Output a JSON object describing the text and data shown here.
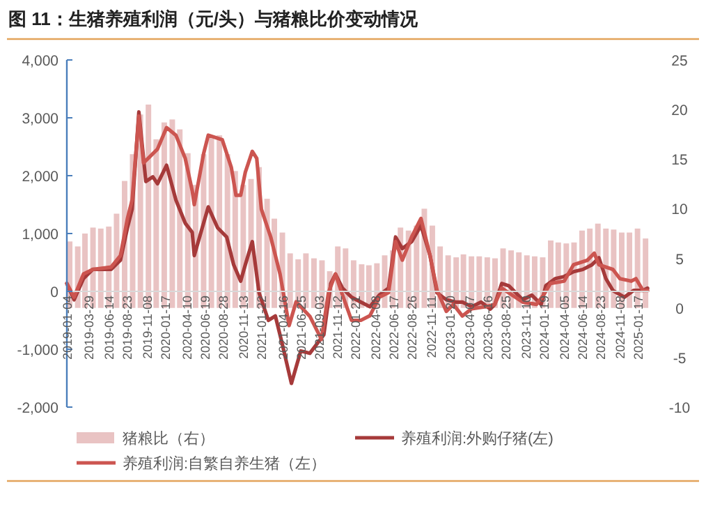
{
  "chart_data": {
    "type": "bar",
    "title": "图 11：生猪养殖利润（元/头）与猪粮比价变动情况",
    "legend": "bottom",
    "grid": false,
    "xlim": [
      "2019-01-04",
      "2025-02-28"
    ],
    "xticks": [
      "2019-01-04",
      "2019-03-29",
      "2019-06-14",
      "2019-08-23",
      "2019-11-08",
      "2020-01-17",
      "2020-04-10",
      "2020-06-19",
      "2020-08-28",
      "2020-11-13",
      "2021-01-22",
      "2021-04-16",
      "2021-06-25",
      "2021-09-03",
      "2021-11-12",
      "2022-01-21",
      "2022-04-08",
      "2022-06-17",
      "2022-08-26",
      "2022-11-11",
      "2023-01-20",
      "2023-04-07",
      "2023-06-16",
      "2023-08-25",
      "2023-11-10",
      "2024-01-19",
      "2024-04-05",
      "2024-06-14",
      "2024-08-23",
      "2024-11-08",
      "2025-01-17"
    ],
    "ylim": [
      -2000,
      4000
    ],
    "yticks": [
      {
        "value": -2000,
        "label": "-2,000"
      },
      {
        "value": -1000,
        "label": "-1,000"
      },
      0,
      {
        "value": 1000,
        "label": "1,000"
      },
      {
        "value": 2000,
        "label": "2,000"
      },
      {
        "value": 3000,
        "label": "3,000"
      },
      {
        "value": 4000,
        "label": "4,000"
      }
    ],
    "y2lim": [
      -10,
      25
    ],
    "y2ticks": [
      -10,
      -5,
      0,
      5,
      10,
      15,
      20,
      25
    ],
    "series": [
      {
        "name": "猪粮比（右）",
        "axis": "y2",
        "color": "#e9c3c3",
        "x": [
          "2019-01-15",
          "2019-02-15",
          "2019-03-15",
          "2019-04-15",
          "2019-05-15",
          "2019-06-15",
          "2019-07-15",
          "2019-08-15",
          "2019-09-15",
          "2019-10-15",
          "2019-11-15",
          "2019-12-15",
          "2020-01-15",
          "2020-02-15",
          "2020-03-15",
          "2020-04-15",
          "2020-05-15",
          "2020-06-15",
          "2020-07-15",
          "2020-08-15",
          "2020-09-15",
          "2020-10-15",
          "2020-11-15",
          "2020-12-15",
          "2021-01-15",
          "2021-02-15",
          "2021-03-15",
          "2021-04-15",
          "2021-05-15",
          "2021-06-15",
          "2021-07-15",
          "2021-08-15",
          "2021-09-15",
          "2021-10-15",
          "2021-11-15",
          "2021-12-15",
          "2022-01-15",
          "2022-02-15",
          "2022-03-15",
          "2022-04-15",
          "2022-05-15",
          "2022-06-15",
          "2022-07-15",
          "2022-08-15",
          "2022-09-15",
          "2022-10-15",
          "2022-11-15",
          "2022-12-15",
          "2023-01-15",
          "2023-02-15",
          "2023-03-15",
          "2023-04-15",
          "2023-05-15",
          "2023-06-15",
          "2023-07-15",
          "2023-08-15",
          "2023-09-15",
          "2023-10-15",
          "2023-11-15",
          "2023-12-15",
          "2024-01-15",
          "2024-02-15",
          "2024-03-15",
          "2024-04-15",
          "2024-05-15",
          "2024-06-15",
          "2024-07-15",
          "2024-08-15",
          "2024-09-15",
          "2024-10-15",
          "2024-11-15",
          "2024-12-15",
          "2025-01-15",
          "2025-02-15"
        ],
        "values": [
          6.7,
          6.2,
          7.5,
          8.1,
          8.0,
          8.2,
          9.5,
          12.8,
          15.5,
          19.5,
          20.5,
          17.0,
          18.7,
          19.0,
          18.0,
          15.6,
          12.4,
          15.5,
          17.4,
          17.4,
          15.5,
          13.8,
          12.4,
          13.0,
          14.2,
          11.0,
          9.0,
          7.6,
          5.5,
          4.9,
          5.5,
          5.0,
          4.8,
          3.7,
          6.2,
          6.0,
          4.8,
          4.4,
          4.3,
          4.5,
          5.3,
          5.8,
          8.1,
          7.8,
          8.3,
          10.0,
          8.3,
          6.2,
          5.3,
          5.1,
          5.4,
          5.2,
          5.2,
          5.1,
          5.0,
          6.0,
          5.8,
          5.6,
          5.3,
          5.2,
          5.1,
          6.8,
          6.6,
          6.5,
          6.6,
          7.8,
          8.0,
          8.5,
          8.0,
          7.9,
          7.6,
          7.6,
          8.0,
          7.0
        ]
      },
      {
        "name": "养殖利润:外购仔猪(左)",
        "type": "line",
        "color": "#a63a3a",
        "x": [
          "2019-01-04",
          "2019-02-01",
          "2019-03-09",
          "2019-04-14",
          "2019-06-24",
          "2019-07-30",
          "2019-08-26",
          "2019-09-13",
          "2019-10-09",
          "2019-11-05",
          "2019-12-02",
          "2019-12-20",
          "2020-01-24",
          "2020-02-29",
          "2020-04-05",
          "2020-05-02",
          "2020-05-10",
          "2020-07-03",
          "2020-08-08",
          "2020-09-12",
          "2020-10-09",
          "2020-11-05",
          "2020-11-23",
          "2020-12-20",
          "2021-01-15",
          "2021-02-20",
          "2021-03-19",
          "2021-04-14",
          "2021-05-20",
          "2021-06-25",
          "2021-07-30",
          "2021-09-22",
          "2021-10-19",
          "2021-11-06",
          "2021-12-03",
          "2022-01-07",
          "2022-02-12",
          "2022-03-19",
          "2022-04-24",
          "2022-05-30",
          "2022-06-26",
          "2022-07-22",
          "2022-08-27",
          "2022-10-02",
          "2022-11-06",
          "2022-12-03",
          "2023-01-08",
          "2023-02-13",
          "2023-03-11",
          "2023-04-16",
          "2023-05-22",
          "2023-06-27",
          "2023-07-14",
          "2023-08-10",
          "2023-09-06",
          "2023-10-30",
          "2023-12-04",
          "2024-01-09",
          "2024-01-27",
          "2024-03-03",
          "2024-04-07",
          "2024-05-13",
          "2024-06-18",
          "2024-07-23",
          "2024-08-19",
          "2024-09-15",
          "2024-10-12",
          "2024-11-25",
          "2024-12-31",
          "2025-02-05",
          "2025-02-23"
        ],
        "values": [
          137,
          -145,
          220,
          380,
          380,
          540,
          1100,
          1420,
          3100,
          1900,
          1980,
          1860,
          2180,
          1580,
          1180,
          1020,
          620,
          1460,
          1100,
          940,
          460,
          177,
          460,
          860,
          -24,
          -500,
          -425,
          -900,
          -1590,
          -1030,
          -1070,
          -750,
          137,
          300,
          56,
          -100,
          -185,
          -265,
          -64,
          56,
          940,
          740,
          860,
          1140,
          620,
          -24,
          -145,
          -185,
          -185,
          -265,
          -185,
          -305,
          -225,
          137,
          97,
          -145,
          -64,
          -225,
          97,
          220,
          257,
          340,
          380,
          460,
          580,
          220,
          16,
          -100,
          16,
          16,
          56
        ]
      },
      {
        "name": "养殖利润:自繁自养生猪（左）",
        "type": "line",
        "color": "#cc5550",
        "x": [
          "2019-01-04",
          "2019-02-01",
          "2019-03-09",
          "2019-04-14",
          "2019-06-24",
          "2019-07-30",
          "2019-08-26",
          "2019-09-13",
          "2019-10-09",
          "2019-10-27",
          "2019-11-14",
          "2019-12-20",
          "2020-01-24",
          "2020-02-29",
          "2020-04-05",
          "2020-05-02",
          "2020-05-10",
          "2020-06-15",
          "2020-07-03",
          "2020-08-26",
          "2020-09-30",
          "2020-10-18",
          "2020-11-05",
          "2020-11-23",
          "2020-12-20",
          "2021-01-06",
          "2021-01-24",
          "2021-03-01",
          "2021-04-06",
          "2021-05-11",
          "2021-06-07",
          "2021-07-30",
          "2021-09-13",
          "2021-10-10",
          "2021-11-06",
          "2021-12-03",
          "2022-01-07",
          "2022-02-12",
          "2022-03-19",
          "2022-04-24",
          "2022-05-30",
          "2022-06-26",
          "2022-07-22",
          "2022-08-27",
          "2022-10-02",
          "2022-11-06",
          "2022-12-03",
          "2023-01-08",
          "2023-02-04",
          "2023-03-11",
          "2023-04-16",
          "2023-06-09",
          "2023-07-14",
          "2023-08-10",
          "2023-09-06",
          "2023-10-30",
          "2023-12-22",
          "2024-01-18",
          "2024-02-14",
          "2024-04-07",
          "2024-05-13",
          "2024-07-06",
          "2024-08-01",
          "2024-08-19",
          "2024-10-12",
          "2024-11-08",
          "2024-12-22",
          "2025-01-09",
          "2025-02-05",
          "2025-02-23"
        ],
        "values": [
          137,
          -100,
          300,
          380,
          420,
          620,
          1260,
          1580,
          3030,
          2220,
          2300,
          2460,
          2830,
          2700,
          2300,
          1740,
          1500,
          2380,
          2700,
          2620,
          2140,
          1660,
          1660,
          2060,
          2420,
          2300,
          1420,
          940,
          300,
          -590,
          -180,
          -430,
          -830,
          -20,
          300,
          -60,
          -500,
          -500,
          -420,
          -100,
          -20,
          860,
          540,
          940,
          1260,
          620,
          20,
          -345,
          -225,
          -425,
          -300,
          -265,
          -225,
          56,
          -24,
          -185,
          -225,
          -64,
          137,
          177,
          460,
          540,
          660,
          460,
          380,
          220,
          177,
          220,
          16,
          16
        ]
      }
    ]
  }
}
